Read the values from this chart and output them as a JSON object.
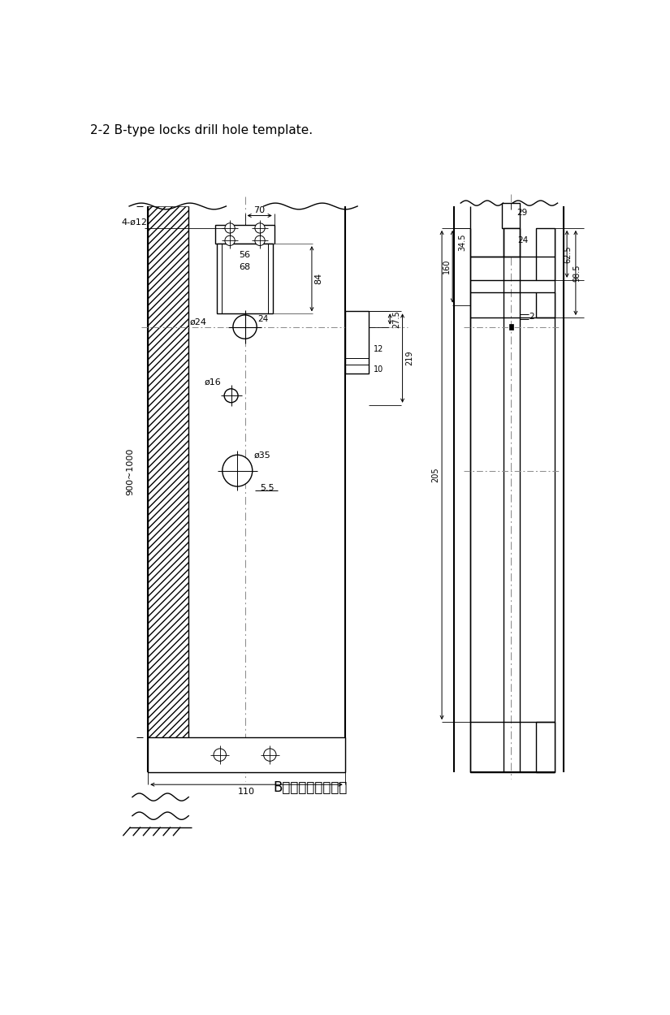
{
  "title": "2-2 B-type locks drill hole template.",
  "subtitle": "B款门锁木门开孔图",
  "bg_color": "#ffffff",
  "lc": "#000000",
  "cl_color": "#888888",
  "annotations": {
    "dim_70": "70",
    "dim_56": "56",
    "dim_68": "68",
    "dim_84": "84",
    "dim_phi24": "ø24",
    "dim_24": "24",
    "dim_phi12": "4-ø12",
    "dim_phi16": "ø16",
    "dim_phi35": "ø35",
    "dim_27_5": "27.5",
    "dim_219": "219",
    "dim_12": "12",
    "dim_10": "10",
    "dim_5_5": "5.5",
    "dim_110": "110",
    "dim_900_1000": "900~1000",
    "dim_29": "29",
    "dim_24r": "24",
    "dim_34_5": "34.5",
    "dim_2": "2",
    "dim_205": "205",
    "dim_160": "160",
    "dim_62_5": "62.5",
    "dim_98_5": "98.5"
  }
}
